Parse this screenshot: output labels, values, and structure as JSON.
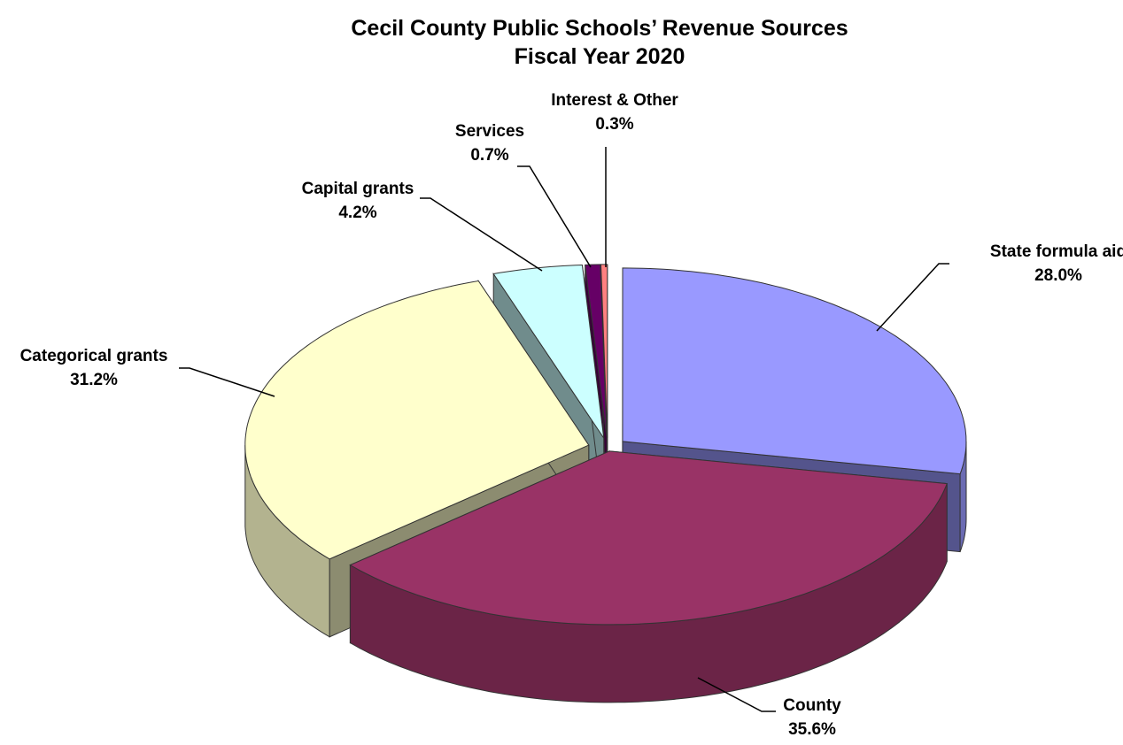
{
  "chart_data": {
    "type": "pie",
    "title": "Cecil County Public Schools’ Revenue Sources",
    "subtitle": "Fiscal Year 2020",
    "slices": [
      {
        "label": "State formula aid",
        "value": 28.0,
        "display": "28.0%",
        "color": "#9999FF"
      },
      {
        "label": "County",
        "value": 35.6,
        "display": "35.6%",
        "color": "#993366"
      },
      {
        "label": "Categorical grants",
        "value": 31.2,
        "display": "31.2%",
        "color": "#FFFFCC"
      },
      {
        "label": "Capital grants",
        "value": 4.2,
        "display": "4.2%",
        "color": "#CCFFFF"
      },
      {
        "label": "Services",
        "value": 0.7,
        "display": "0.7%",
        "color": "#660066"
      },
      {
        "label": "Interest & Other",
        "value": 0.3,
        "display": "0.3%",
        "color": "#FF8080"
      }
    ],
    "legend": "none",
    "style": "3d-exploded"
  }
}
